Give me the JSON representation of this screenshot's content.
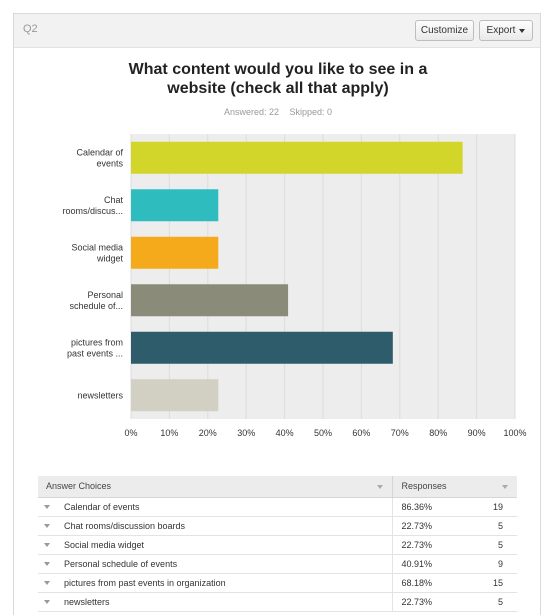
{
  "question_label": "Q2",
  "buttons": {
    "customize": "Customize",
    "export": "Export"
  },
  "title_line1": "What content would you like to see in a",
  "title_line2": "website (check all that apply)",
  "stats": {
    "answered": "Answered: 22",
    "skipped": "Skipped: 0"
  },
  "colors": {
    "grid": "#dcdcdc",
    "plot_bg": "#ededed"
  },
  "chart_data": {
    "type": "bar",
    "orientation": "horizontal",
    "categories": [
      [
        "Calendar of",
        "events"
      ],
      [
        "Chat",
        "rooms/discus..."
      ],
      [
        "Social media",
        "widget"
      ],
      [
        "Personal",
        "schedule of..."
      ],
      [
        "pictures from",
        "past events ..."
      ],
      [
        "newsletters"
      ]
    ],
    "values": [
      86.36,
      22.73,
      22.73,
      40.91,
      68.18,
      22.73
    ],
    "bar_colors": [
      "#d2d62b",
      "#2fbcbf",
      "#f5aa1c",
      "#8b8b7a",
      "#2f5c6b",
      "#d2d0c2"
    ],
    "xlim": [
      0,
      100
    ],
    "x_ticks": [
      "0%",
      "10%",
      "20%",
      "30%",
      "40%",
      "50%",
      "60%",
      "70%",
      "80%",
      "90%",
      "100%"
    ],
    "grid": true
  },
  "table": {
    "headers": {
      "choice": "Answer Choices",
      "responses": "Responses"
    },
    "rows": [
      {
        "choice": "Calendar of events",
        "pct": "86.36%",
        "count": "19"
      },
      {
        "choice": "Chat rooms/discussion boards",
        "pct": "22.73%",
        "count": "5"
      },
      {
        "choice": "Social media widget",
        "pct": "22.73%",
        "count": "5"
      },
      {
        "choice": "Personal schedule of events",
        "pct": "40.91%",
        "count": "9"
      },
      {
        "choice": "pictures from past events in organization",
        "pct": "68.18%",
        "count": "15"
      },
      {
        "choice": "newsletters",
        "pct": "22.73%",
        "count": "5"
      }
    ]
  }
}
